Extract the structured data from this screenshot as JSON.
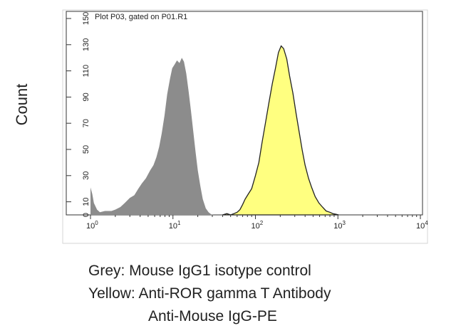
{
  "page_ylabel": "Count",
  "chart_data": {
    "type": "area",
    "title": "Plot P03, gated on P01.R1",
    "xlabel": "",
    "ylabel": "",
    "xscale": "log",
    "xlim": [
      1,
      10000
    ],
    "ylim": [
      0,
      150
    ],
    "xticks": [
      {
        "value": 1,
        "base": "10",
        "exp": "0"
      },
      {
        "value": 10,
        "base": "10",
        "exp": "1"
      },
      {
        "value": 100,
        "base": "10",
        "exp": "2"
      },
      {
        "value": 1000,
        "base": "10",
        "exp": "3"
      },
      {
        "value": 10000,
        "base": "10",
        "exp": "4"
      }
    ],
    "yticks": [
      0,
      10,
      30,
      50,
      70,
      90,
      110,
      130,
      150
    ],
    "grid": false,
    "series": [
      {
        "color": "#8c8c8c",
        "points": [
          [
            1.0,
            21
          ],
          [
            1.05,
            16
          ],
          [
            1.1,
            9
          ],
          [
            1.2,
            4
          ],
          [
            1.3,
            2
          ],
          [
            1.5,
            3
          ],
          [
            1.8,
            3
          ],
          [
            2.0,
            4
          ],
          [
            2.3,
            6
          ],
          [
            2.6,
            9
          ],
          [
            3.0,
            13
          ],
          [
            3.4,
            15
          ],
          [
            3.8,
            20
          ],
          [
            4.2,
            24
          ],
          [
            4.7,
            28
          ],
          [
            5.3,
            34
          ],
          [
            5.8,
            38
          ],
          [
            6.3,
            44
          ],
          [
            6.8,
            52
          ],
          [
            7.3,
            62
          ],
          [
            7.9,
            76
          ],
          [
            8.5,
            92
          ],
          [
            9.2,
            104
          ],
          [
            9.8,
            112
          ],
          [
            10.5,
            115
          ],
          [
            11.2,
            118
          ],
          [
            12.0,
            116
          ],
          [
            12.8,
            120
          ],
          [
            13.6,
            117
          ],
          [
            14.5,
            108
          ],
          [
            15.5,
            94
          ],
          [
            16.5,
            80
          ],
          [
            17.6,
            64
          ],
          [
            18.8,
            48
          ],
          [
            20.0,
            34
          ],
          [
            21.5,
            22
          ],
          [
            23.0,
            12
          ],
          [
            25.0,
            5
          ],
          [
            27.0,
            2
          ],
          [
            29.0,
            0.5
          ],
          [
            31.0,
            0
          ]
        ]
      },
      {
        "color": "#ffff80",
        "points": [
          [
            40,
            0
          ],
          [
            45,
            1
          ],
          [
            50,
            0
          ],
          [
            55,
            1
          ],
          [
            60,
            2
          ],
          [
            65,
            4
          ],
          [
            70,
            8
          ],
          [
            75,
            12
          ],
          [
            82,
            16
          ],
          [
            90,
            20
          ],
          [
            100,
            30
          ],
          [
            110,
            40
          ],
          [
            120,
            55
          ],
          [
            132,
            70
          ],
          [
            145,
            85
          ],
          [
            160,
            100
          ],
          [
            175,
            112
          ],
          [
            190,
            124
          ],
          [
            205,
            129
          ],
          [
            220,
            127
          ],
          [
            240,
            119
          ],
          [
            260,
            106
          ],
          [
            285,
            93
          ],
          [
            310,
            78
          ],
          [
            340,
            63
          ],
          [
            370,
            49
          ],
          [
            400,
            38
          ],
          [
            440,
            28
          ],
          [
            480,
            21
          ],
          [
            530,
            14
          ],
          [
            590,
            9
          ],
          [
            650,
            6
          ],
          [
            720,
            3
          ],
          [
            800,
            2
          ],
          [
            870,
            1
          ],
          [
            950,
            0.5
          ],
          [
            1020,
            0
          ]
        ]
      }
    ]
  },
  "legend": {
    "line1": "Grey: Mouse IgG1 isotype control",
    "line2": "Yellow: Anti-ROR gamma T Antibody",
    "line3": "Anti-Mouse IgG-PE"
  }
}
